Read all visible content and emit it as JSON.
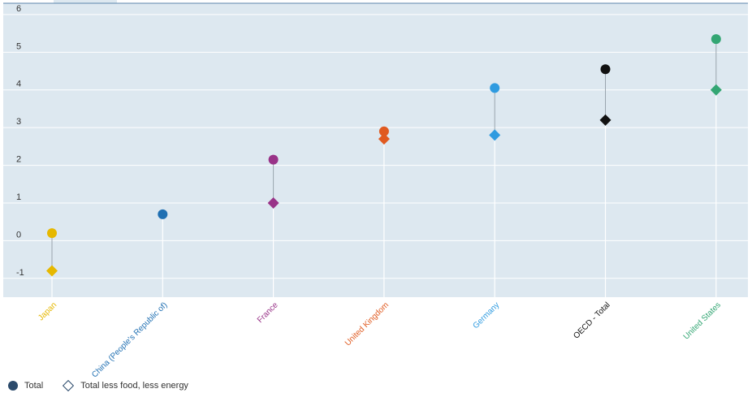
{
  "chart_data": {
    "type": "scatter",
    "categories": [
      "Japan",
      "China (People's Republic of)",
      "France",
      "United Kingdom",
      "Germany",
      "OECD - Total",
      "United States"
    ],
    "category_colors": [
      "#e6b800",
      "#1f6fb2",
      "#993388",
      "#e05a20",
      "#2f9be0",
      "#111111",
      "#33a673"
    ],
    "series": [
      {
        "name": "Total",
        "marker": "circle",
        "values": [
          0.2,
          0.7,
          2.15,
          2.9,
          4.05,
          4.55,
          5.35
        ]
      },
      {
        "name": "Total less food, less energy",
        "marker": "diamond",
        "values": [
          -0.8,
          null,
          1.0,
          2.7,
          2.8,
          3.2,
          4.0
        ]
      }
    ],
    "yticks": [
      -1,
      0,
      1,
      2,
      3,
      4,
      5,
      6
    ],
    "ylim": [
      -1.5,
      6.3
    ],
    "grid": true,
    "legend_position": "bottom-left",
    "plot_background": "#dde8f0"
  },
  "legend": {
    "total_label": "Total",
    "core_label": "Total less food, less energy",
    "swatch_color": "#2b4a6b"
  }
}
